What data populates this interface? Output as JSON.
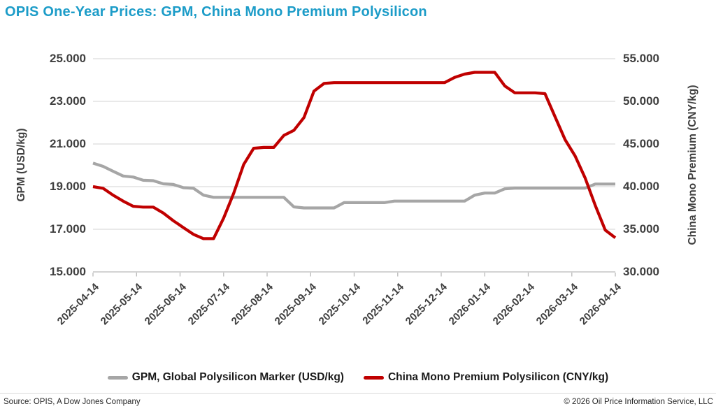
{
  "title": "OPIS One-Year Prices: GPM, China Mono Premium Polysilicon",
  "title_color": "#1C9CC8",
  "left_axis": {
    "title": "GPM (USD/kg)",
    "tick_labels": [
      "25.000",
      "23.000",
      "21.000",
      "19.000",
      "17.000",
      "15.000"
    ],
    "tick_values": [
      25,
      23,
      21,
      19,
      17,
      15
    ]
  },
  "right_axis": {
    "title": "China Mono Premium (CNY/kg)",
    "tick_labels": [
      "55.000",
      "50.000",
      "45.000",
      "40.000",
      "35.000",
      "30.000"
    ],
    "tick_values": [
      55,
      50,
      45,
      40,
      35,
      30
    ]
  },
  "x_axis": {
    "tick_labels": [
      "2025-04-14",
      "2025-05-14",
      "2025-06-14",
      "2025-07-14",
      "2025-08-14",
      "2025-09-14",
      "2025-10-14",
      "2025-11-14",
      "2025-12-14",
      "2026-01-14",
      "2026-02-14",
      "2026-03-14",
      "2026-04-14"
    ]
  },
  "legend": [
    {
      "label": "GPM, Global Polysilicon Marker (USD/kg)",
      "color": "#A6A6A6"
    },
    {
      "label": "China Mono Premium Polysilicon (CNY/kg)",
      "color": "#C00000"
    }
  ],
  "footer": {
    "source": "Source: OPIS, A Dow Jones Company",
    "copyright": "© 2026 Oil Price Information Service, LLC"
  },
  "chart_data": {
    "type": "line",
    "title": "OPIS One-Year Prices: GPM, China Mono Premium Polysilicon",
    "x": [
      "2025-04-14",
      "2025-04-21",
      "2025-04-28",
      "2025-05-05",
      "2025-05-12",
      "2025-05-19",
      "2025-05-26",
      "2025-06-02",
      "2025-06-09",
      "2025-06-16",
      "2025-06-23",
      "2025-06-30",
      "2025-07-07",
      "2025-07-14",
      "2025-07-21",
      "2025-07-28",
      "2025-08-04",
      "2025-08-11",
      "2025-08-18",
      "2025-08-25",
      "2025-09-01",
      "2025-09-08",
      "2025-09-15",
      "2025-09-22",
      "2025-09-29",
      "2025-10-06",
      "2025-10-13",
      "2025-10-20",
      "2025-10-27",
      "2025-11-03",
      "2025-11-10",
      "2025-11-17",
      "2025-11-24",
      "2025-12-01",
      "2025-12-08",
      "2025-12-15",
      "2025-12-22",
      "2025-12-29",
      "2026-01-05",
      "2026-01-12",
      "2026-01-19",
      "2026-01-26",
      "2026-02-02",
      "2026-02-09",
      "2026-02-16",
      "2026-02-23",
      "2026-03-02",
      "2026-03-09",
      "2026-03-16",
      "2026-03-23",
      "2026-03-30",
      "2026-04-06",
      "2026-04-13"
    ],
    "series": [
      {
        "name": "GPM, Global Polysilicon Marker (USD/kg)",
        "axis": "left",
        "color": "#A6A6A6",
        "values": [
          20.1,
          19.95,
          19.72,
          19.5,
          19.45,
          19.3,
          19.28,
          19.13,
          19.1,
          18.95,
          18.92,
          18.6,
          18.5,
          18.5,
          18.5,
          18.5,
          18.5,
          18.5,
          18.5,
          18.5,
          18.05,
          18.0,
          18.0,
          18.0,
          18.0,
          18.25,
          18.25,
          18.25,
          18.25,
          18.25,
          18.32,
          18.32,
          18.32,
          18.32,
          18.32,
          18.32,
          18.32,
          18.32,
          18.6,
          18.7,
          18.7,
          18.9,
          18.93,
          18.93,
          18.93,
          18.93,
          18.93,
          18.93,
          18.93,
          18.93,
          19.12,
          19.12,
          19.12
        ]
      },
      {
        "name": "China Mono Premium Polysilicon (CNY/kg)",
        "axis": "right",
        "color": "#C00000",
        "values": [
          40.0,
          39.8,
          39.0,
          38.3,
          37.7,
          37.6,
          37.6,
          36.9,
          36.0,
          35.2,
          34.4,
          33.9,
          33.9,
          36.3,
          39.2,
          42.6,
          44.5,
          44.6,
          44.6,
          46.0,
          46.6,
          48.1,
          51.2,
          52.1,
          52.2,
          52.2,
          52.2,
          52.2,
          52.2,
          52.2,
          52.2,
          52.2,
          52.2,
          52.2,
          52.2,
          52.2,
          52.8,
          53.2,
          53.4,
          53.4,
          53.4,
          51.8,
          51.0,
          51.0,
          51.0,
          50.9,
          48.2,
          45.5,
          43.6,
          41.0,
          37.8,
          34.9,
          34.0
        ]
      }
    ],
    "left_ylim": [
      15,
      25
    ],
    "right_ylim": [
      30,
      55
    ],
    "xlabel": "",
    "ylabel_left": "GPM (USD/kg)",
    "ylabel_right": "China Mono Premium (CNY/kg)",
    "grid": true,
    "legend_position": "bottom"
  }
}
